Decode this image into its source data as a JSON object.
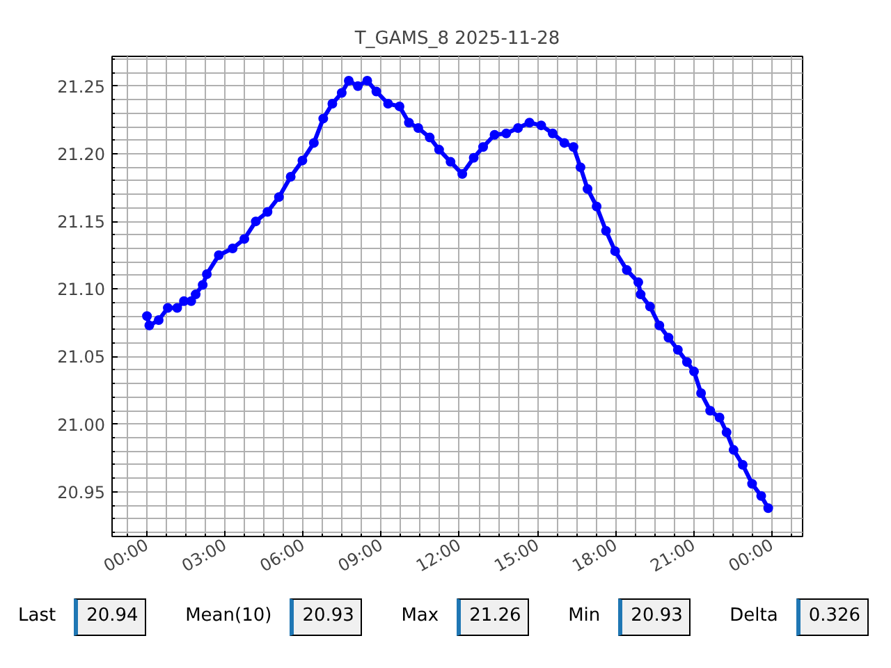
{
  "chart_data": {
    "type": "line",
    "title": "T_GAMS_8 2025-11-28",
    "x": [
      0,
      0.09,
      0.45,
      0.8,
      1.16,
      1.42,
      1.7,
      1.87,
      2.14,
      2.3,
      2.76,
      3.29,
      3.74,
      4.18,
      4.63,
      5.07,
      5.52,
      5.97,
      6.41,
      6.77,
      7.12,
      7.48,
      7.75,
      8.1,
      8.46,
      8.81,
      9.26,
      9.7,
      10.06,
      10.42,
      10.86,
      11.22,
      11.66,
      12.11,
      12.55,
      12.91,
      13.35,
      13.8,
      14.25,
      14.69,
      15.14,
      15.58,
      16.03,
      16.38,
      16.65,
      16.92,
      17.27,
      17.63,
      17.98,
      18.43,
      18.87,
      18.96,
      19.32,
      19.68,
      20.03,
      20.39,
      20.74,
      21.01,
      21.28,
      21.63,
      21.99,
      22.26,
      22.53,
      22.88,
      23.24,
      23.59,
      23.86
    ],
    "series": [
      {
        "color": "#0000ff",
        "values": [
          21.08,
          21.073,
          21.077,
          21.086,
          21.086,
          21.091,
          21.091,
          21.096,
          21.103,
          21.111,
          21.125,
          21.13,
          21.137,
          21.15,
          21.157,
          21.168,
          21.183,
          21.195,
          21.208,
          21.226,
          21.237,
          21.245,
          21.254,
          21.25,
          21.254,
          21.246,
          21.237,
          21.235,
          21.223,
          21.219,
          21.212,
          21.203,
          21.194,
          21.185,
          21.197,
          21.205,
          21.214,
          21.215,
          21.219,
          21.223,
          21.221,
          21.215,
          21.208,
          21.205,
          21.19,
          21.174,
          21.161,
          21.143,
          21.128,
          21.114,
          21.105,
          21.096,
          21.087,
          21.073,
          21.064,
          21.055,
          21.046,
          21.039,
          21.023,
          21.01,
          21.005,
          20.994,
          20.981,
          20.97,
          20.956,
          20.947,
          20.938
        ]
      }
    ],
    "xlim": [
      -1.34,
      25.18
    ],
    "xticks": [
      {
        "value": 0,
        "label": "00:00"
      },
      {
        "value": 3,
        "label": "03:00"
      },
      {
        "value": 6,
        "label": "06:00"
      },
      {
        "value": 9,
        "label": "09:00"
      },
      {
        "value": 12,
        "label": "12:00"
      },
      {
        "value": 15,
        "label": "15:00"
      },
      {
        "value": 18,
        "label": "18:00"
      },
      {
        "value": 21,
        "label": "21:00"
      },
      {
        "value": 24,
        "label": "00:00"
      }
    ],
    "ylim": [
      20.917,
      21.272
    ],
    "yticks": [
      {
        "value": 20.95,
        "label": "20.95"
      },
      {
        "value": 21.0,
        "label": "21.00"
      },
      {
        "value": 21.05,
        "label": "21.05"
      },
      {
        "value": 21.1,
        "label": "21.10"
      },
      {
        "value": 21.15,
        "label": "21.15"
      },
      {
        "value": 21.2,
        "label": "21.20"
      },
      {
        "value": 21.25,
        "label": "21.25"
      }
    ],
    "grid": true,
    "marker": "circle",
    "line_style": "solid",
    "annotations": [
      "Last",
      "20.94",
      "Mean(10)",
      "20.93",
      "Max",
      "21.26",
      "Min",
      "20.93",
      "Delta",
      "0.326"
    ]
  }
}
